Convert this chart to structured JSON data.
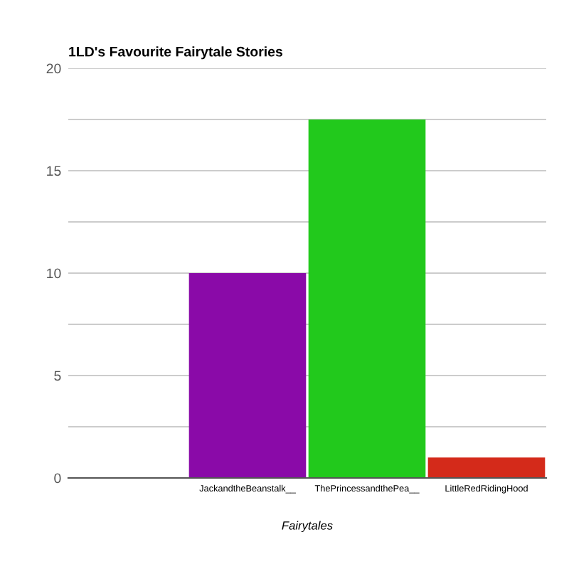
{
  "chart_data": {
    "type": "bar",
    "title": "1LD's Favourite Fairytale Stories",
    "xlabel": "Fairytales",
    "categories": [
      null,
      "JackandtheBeanstalk__",
      "ThePrincessandthePea__",
      "LittleRedRidingHood"
    ],
    "values": [
      0,
      10,
      17.5,
      1
    ],
    "colors": [
      "#3366cc",
      "#8a0aa8",
      "#22c91c",
      "#d42a1a"
    ],
    "ylim": [
      0,
      20
    ],
    "yticks": [
      0,
      {
        "value": 2.5,
        "label": null
      },
      5,
      {
        "value": 7.5,
        "label": null
      },
      10,
      {
        "value": 12.5,
        "label": null
      },
      15,
      {
        "value": 17.5,
        "label": null
      },
      20
    ],
    "grid": "y"
  }
}
